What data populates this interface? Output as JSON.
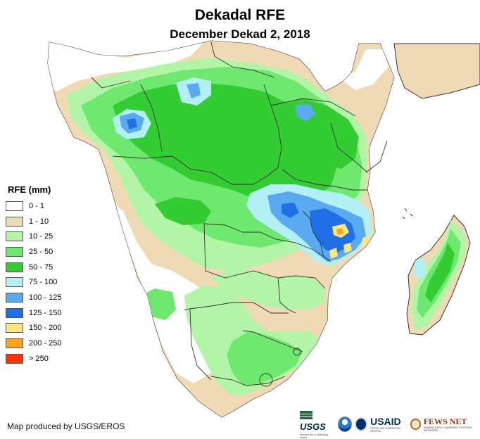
{
  "title": "Dekadal RFE",
  "subtitle": "December Dekad 2, 2018",
  "legend": {
    "title": "RFE (mm)",
    "items": [
      {
        "label": "0 - 1",
        "color": "#ffffff"
      },
      {
        "label": "1 - 10",
        "color": "#f0d9b5"
      },
      {
        "label": "10 - 25",
        "color": "#b3f5a6"
      },
      {
        "label": "25 - 50",
        "color": "#6fe86f"
      },
      {
        "label": "50 - 75",
        "color": "#33cc33"
      },
      {
        "label": "75 - 100",
        "color": "#b3f0f5"
      },
      {
        "label": "100 - 125",
        "color": "#59aaf0"
      },
      {
        "label": "125 - 150",
        "color": "#1f6fe6"
      },
      {
        "label": "150 - 200",
        "color": "#ffe680"
      },
      {
        "label": "200 - 250",
        "color": "#ffa31a"
      },
      {
        "label": "> 250",
        "color": "#ff3300"
      }
    ]
  },
  "credit": "Map produced by USGS/EROS",
  "logos": {
    "usgs": {
      "name": "USGS",
      "tagline": "science for a changing world",
      "icon": "usgs-icon"
    },
    "noaa": {
      "icon": "noaa-icon"
    },
    "usaid": {
      "name_main": "USAID",
      "tagline": "FROM THE AMERICAN PEOPLE",
      "icon": "usaid-seal-icon"
    },
    "fews": {
      "name": "FEWS NET",
      "tagline": "FAMINE EARLY WARNING SYSTEMS NETWORK",
      "icon": "fews-net-icon"
    }
  }
}
